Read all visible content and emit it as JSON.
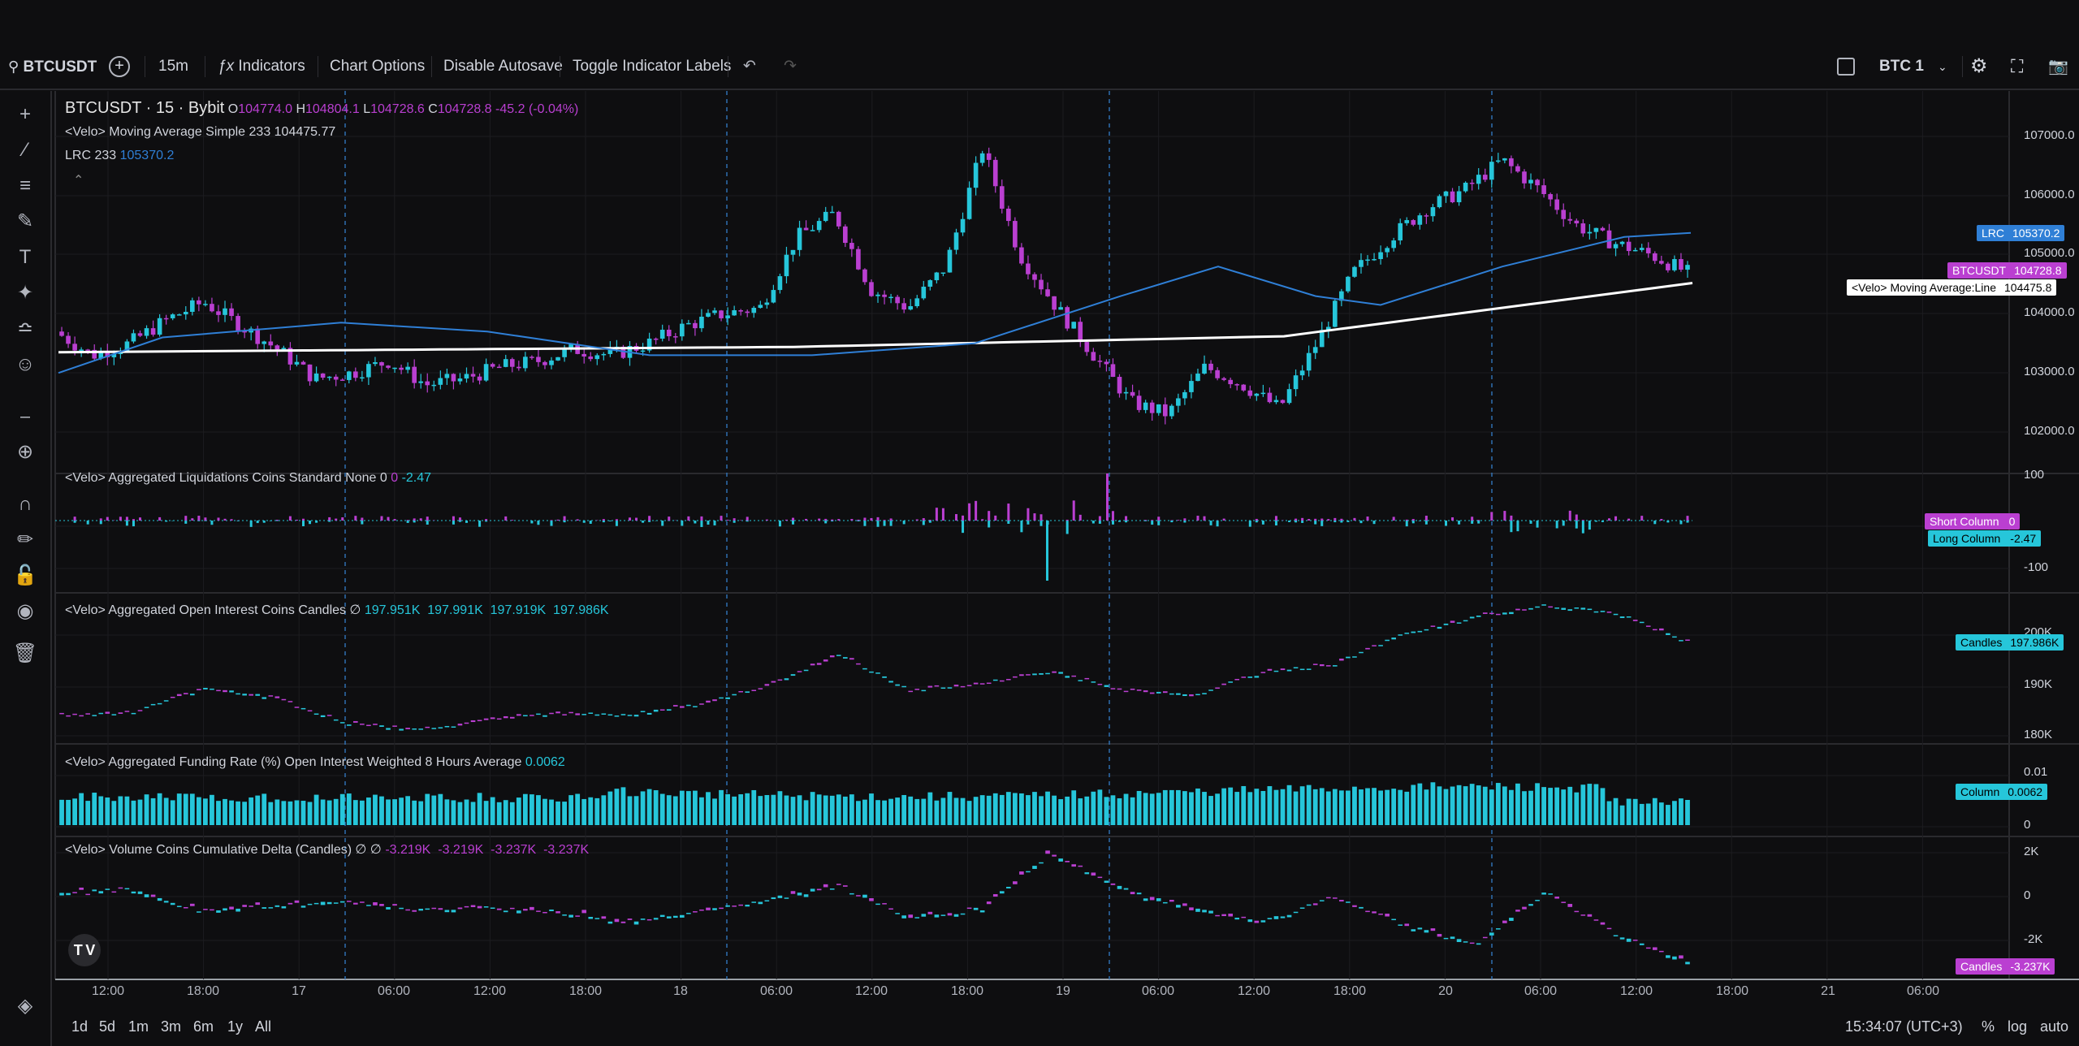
{
  "toolbar": {
    "symbol": "BTCUSDT",
    "interval": "15m",
    "indicators": "Indicators",
    "chart_options": "Chart Options",
    "disable_autosave": "Disable Autosave",
    "toggle_labels": "Toggle Indicator Labels",
    "layout_name": "BTC 1",
    "icons": [
      "search-icon",
      "add-icon",
      "function-icon",
      "undo-icon",
      "redo-icon",
      "layout-icon",
      "chevron-down-icon",
      "gear-icon",
      "fullscreen-icon",
      "camera-icon"
    ]
  },
  "left_tools": [
    "crosshair-icon",
    "trendline-icon",
    "fib-icon",
    "brush-icon",
    "text-icon",
    "pattern-icon",
    "forecast-icon",
    "emoji-icon",
    "ruler-icon",
    "zoom-icon",
    "magnet-icon",
    "lock-drawings-icon",
    "lock-icon",
    "eye-icon",
    "trash-icon",
    "layers-icon"
  ],
  "legend": {
    "main_title": "BTCUSDT · 15 · Bybit",
    "o_label": "O",
    "o": "104774.0",
    "h_label": "H",
    "h": "104804.1",
    "l_label": "L",
    "l": "104728.6",
    "c_label": "C",
    "c": "104728.8",
    "change": "-45.2 (-0.04%)",
    "ma": "<Velo> Moving Average Simple 233 104475.77",
    "lrc_label": "LRC 233",
    "lrc": "105370.2",
    "liq": "<Velo> Aggregated Liquidations Coins Standard None 0",
    "liq_v1": "0",
    "liq_v2": "-2.47",
    "oi": "<Velo> Aggregated Open Interest Coins Candles",
    "oi_sym": "∅",
    "oi_vals": "197.951K  197.991K  197.919K  197.986K",
    "fr": "<Velo> Aggregated Funding Rate (%) Open Interest Weighted 8 Hours Average",
    "fr_v": "0.0062",
    "cvd": "<Velo> Volume Coins Cumulative Delta (Candles)",
    "cvd_sym": "∅ ∅",
    "cvd_vals": "-3.219K  -3.219K  -3.237K  -3.237K"
  },
  "price_scale": [
    "107000.0",
    "106000.0",
    "105000.0",
    "104000.0",
    "103000.0",
    "102000.0"
  ],
  "liq_scale": [
    "100",
    "-100"
  ],
  "oi_scale": [
    "200K",
    "190K",
    "180K"
  ],
  "fr_scale": [
    "0.01",
    "0"
  ],
  "cvd_scale": [
    "2K",
    "0",
    "-2K"
  ],
  "badges": {
    "lrc_name": "LRC",
    "lrc_val": "105370.2",
    "sym_name": "BTCUSDT",
    "sym_val": "104728.8",
    "ma_name": "<Velo> Moving Average:Line",
    "ma_val": "104475.8",
    "short_name": "Short Column",
    "short_val": "0",
    "long_name": "Long Column",
    "long_val": "-2.47",
    "oi_name": "Candles",
    "oi_val": "197.986K",
    "fr_name": "Column",
    "fr_val": "0.0062",
    "cvd_name": "Candles",
    "cvd_val": "-3.237K"
  },
  "time_axis": [
    "12:00",
    "18:00",
    "17",
    "06:00",
    "12:00",
    "18:00",
    "18",
    "06:00",
    "12:00",
    "18:00",
    "19",
    "06:00",
    "12:00",
    "18:00",
    "20",
    "06:00",
    "12:00",
    "18:00",
    "21",
    "06:00"
  ],
  "ranges": [
    "1d",
    "5d",
    "1m",
    "3m",
    "6m",
    "1y",
    "All"
  ],
  "clock": "15:34:07 (UTC+3)",
  "scale_opts": [
    "%",
    "log",
    "auto"
  ],
  "colors": {
    "up": "#26c6da",
    "down": "#ba3fd1",
    "ma": "#ffffff",
    "lrc": "#2f7fd6",
    "bg": "#0e0e10"
  },
  "chart_data": {
    "type": "candlestick",
    "price_series": [
      {
        "name": "BTCUSDT",
        "approx_close": [
          103700,
          103300,
          103500,
          103900,
          104200,
          103800,
          103400,
          102900,
          103000,
          103200,
          102800,
          102900,
          103100,
          103200,
          103400,
          103300,
          103500,
          103800,
          104000,
          104100,
          105300,
          105700,
          104400,
          104100,
          104800,
          106800,
          105000,
          104100,
          103300,
          102500,
          102300,
          103100,
          102800,
          102400,
          103500,
          104700,
          105300,
          105800,
          106100,
          106600,
          106100,
          105500,
          105200,
          105000,
          104700
        ]
      }
    ],
    "ylim": [
      101600,
      107400
    ],
    "indicators": [
      "Moving Average Simple 233",
      "LRC 233",
      "Aggregated Liquidations",
      "Aggregated Open Interest",
      "Aggregated Funding Rate",
      "Volume Coins Cumulative Delta"
    ]
  }
}
